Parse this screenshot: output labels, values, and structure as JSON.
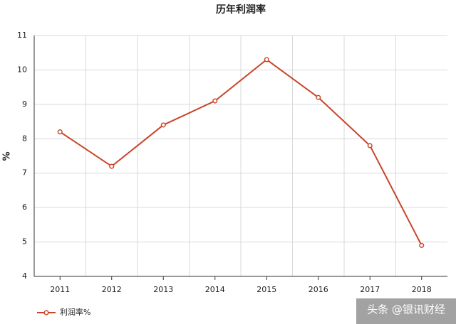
{
  "chart_data": {
    "type": "line",
    "title": "历年利润率",
    "y_label": "%",
    "categories": [
      "2011",
      "2012",
      "2013",
      "2014",
      "2015",
      "2016",
      "2017",
      "2018"
    ],
    "series": [
      {
        "name": "利润率%",
        "color": "#c8452a",
        "values": [
          8.2,
          7.2,
          8.4,
          9.1,
          10.3,
          9.2,
          7.8,
          4.9
        ]
      }
    ],
    "ylim": [
      4,
      11
    ],
    "yticks": [
      4,
      5,
      6,
      7,
      8,
      9,
      10,
      11
    ],
    "grid": true,
    "legend": "bottom-left",
    "watermark": "头条 @银讯财经"
  }
}
